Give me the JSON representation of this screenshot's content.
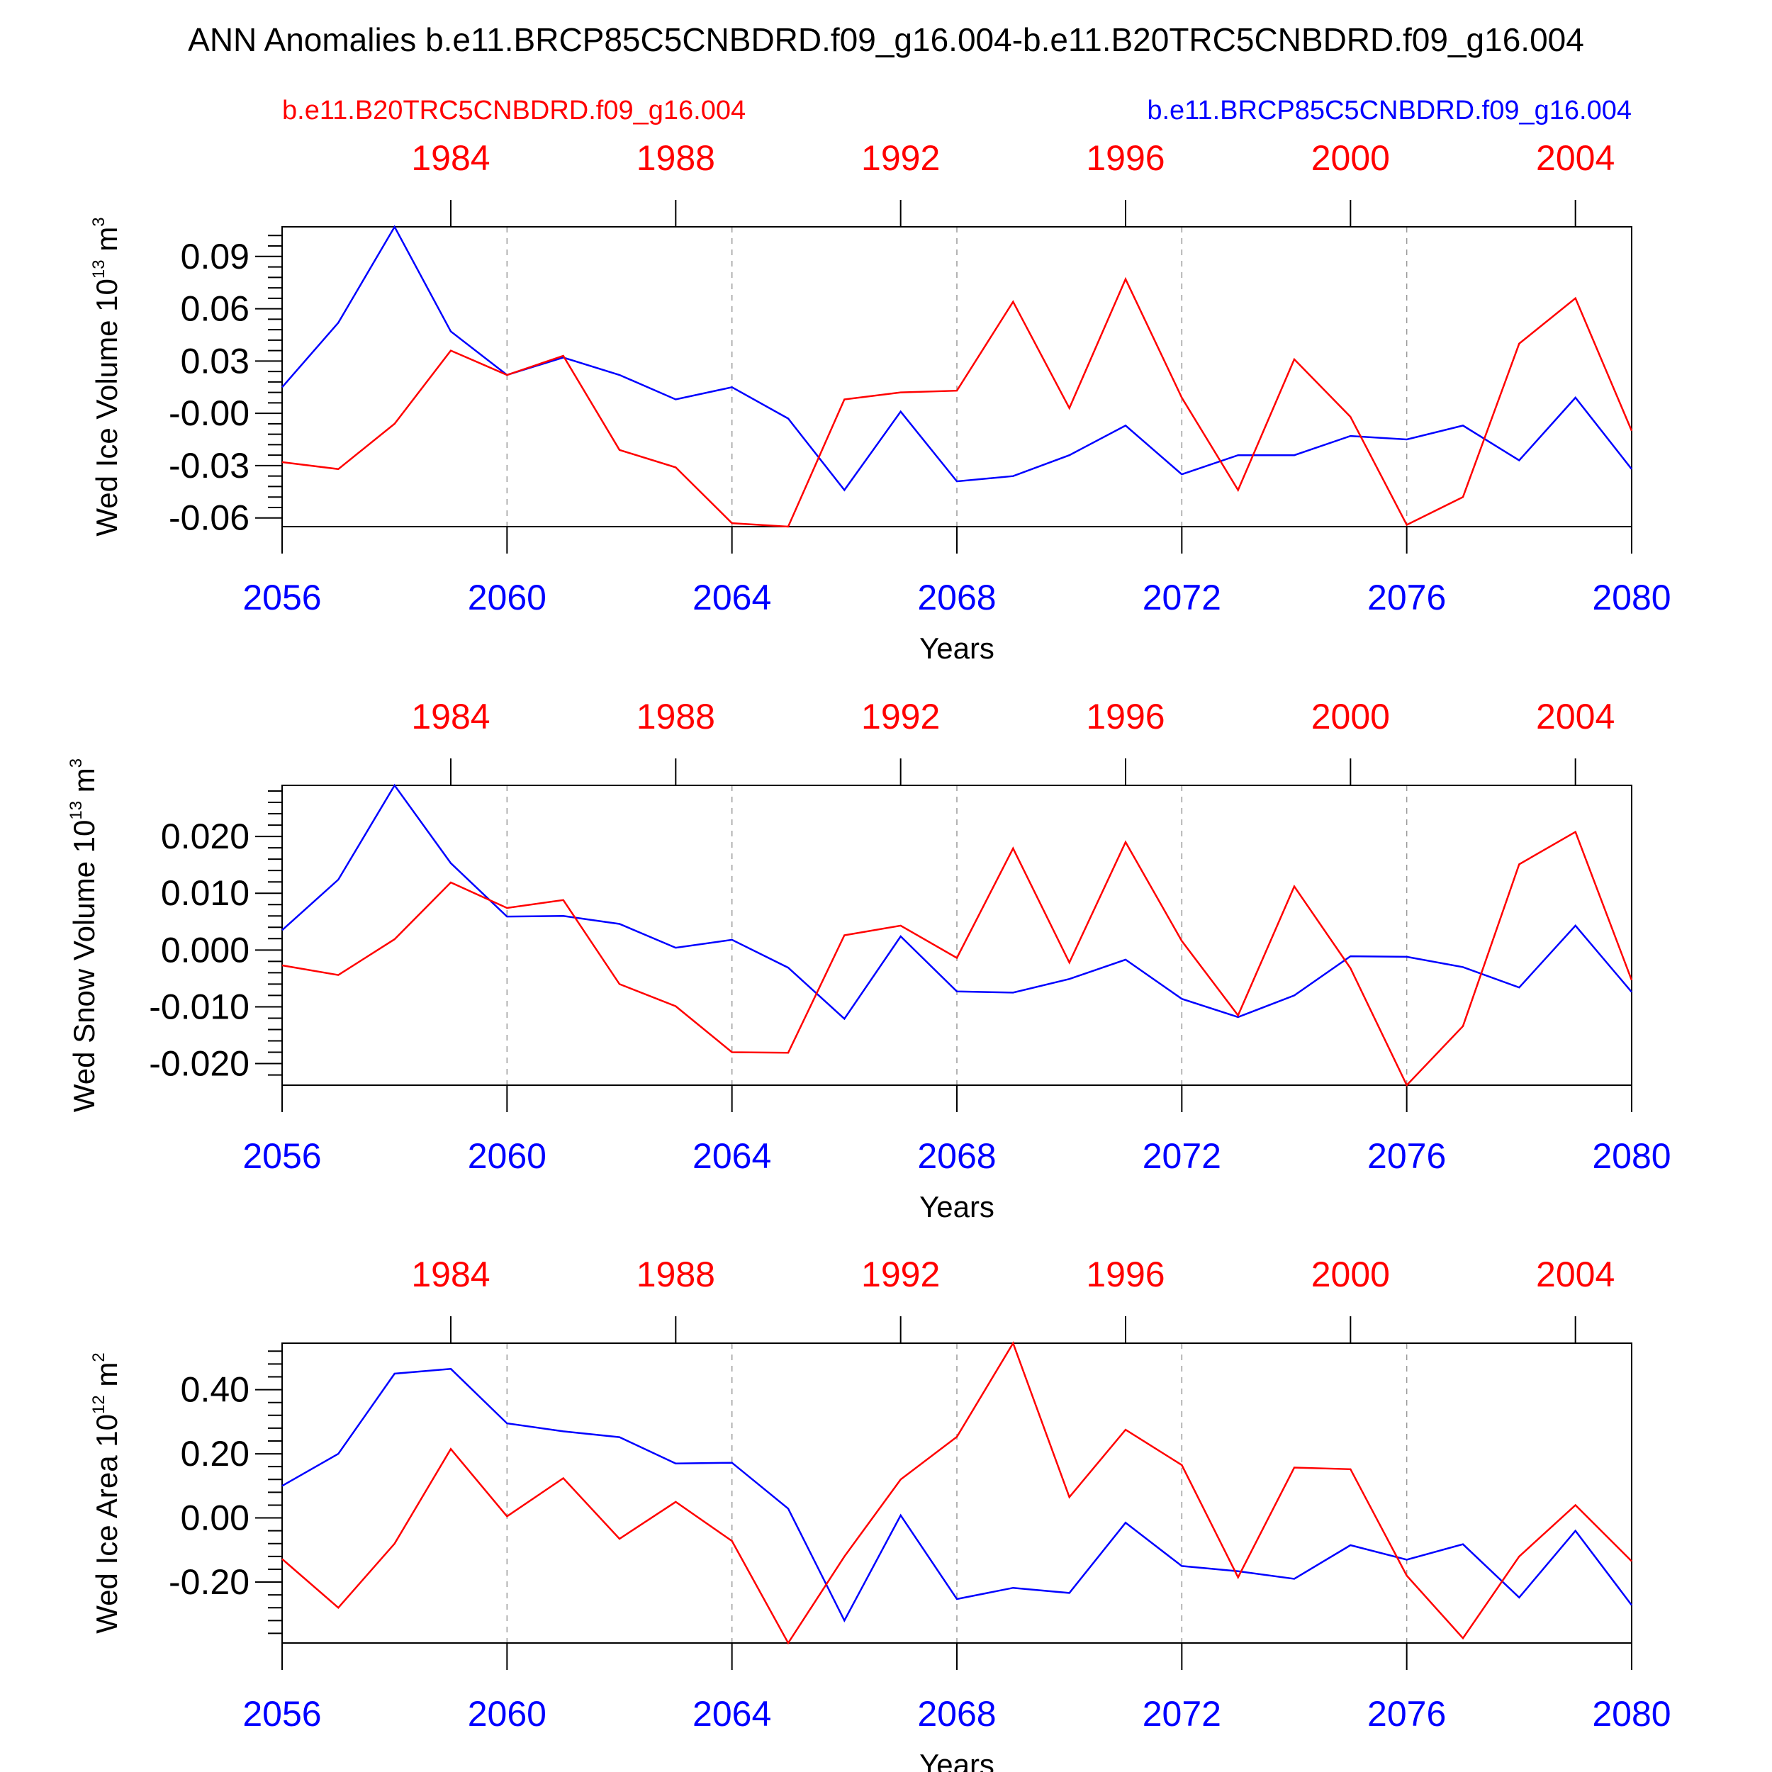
{
  "figure": {
    "title": "ANN Anomalies b.e11.BRCP85C5CNBDRD.f09_g16.004-b.e11.B20TRC5CNBDRD.f09_g16.004",
    "left_run": "b.e11.B20TRC5CNBDRD.f09_g16.004",
    "right_run": "b.e11.BRCP85C5CNBDRD.f09_g16.004",
    "colors": {
      "historical": "#ff0000",
      "future": "#0000ff"
    }
  },
  "chart_data": [
    {
      "type": "line",
      "ylabel_main": "Wed Ice Volume 10",
      "ylabel_exp": "13",
      "ylabel_unit": " m",
      "ylabel_unit_exp": "3",
      "xlabel": "Years",
      "x": [
        2056,
        2057,
        2058,
        2059,
        2060,
        2061,
        2062,
        2063,
        2064,
        2065,
        2066,
        2067,
        2068,
        2069,
        2070,
        2071,
        2072,
        2073,
        2074,
        2075,
        2076,
        2077,
        2078,
        2079,
        2080
      ],
      "xlim": [
        2056,
        2080
      ],
      "xticks": [
        2056,
        2060,
        2064,
        2068,
        2072,
        2076,
        2080
      ],
      "xtick_labels": [
        "2056",
        "2060",
        "2064",
        "2068",
        "2072",
        "2076",
        "2080"
      ],
      "top_ticks": [
        2059,
        2063,
        2067,
        2071,
        2075,
        2079
      ],
      "top_tick_labels": [
        "1984",
        "1988",
        "1992",
        "1996",
        "2000",
        "2004"
      ],
      "ylim": [
        -0.065,
        0.107
      ],
      "yticks": [
        0.09,
        0.06,
        0.03,
        0.0,
        -0.03,
        -0.06
      ],
      "ytick_labels": [
        "0.09",
        "0.06",
        "0.03",
        "-0.00",
        "-0.03",
        "-0.06"
      ],
      "yminor_step": 0.006,
      "series": [
        {
          "key": "future",
          "values": [
            0.015,
            0.052,
            0.107,
            0.047,
            0.022,
            0.032,
            0.022,
            0.008,
            0.015,
            -0.003,
            -0.044,
            0.001,
            -0.039,
            -0.036,
            -0.024,
            -0.007,
            -0.035,
            -0.024,
            -0.024,
            -0.013,
            -0.015,
            -0.007,
            -0.027,
            0.009,
            -0.032
          ]
        },
        {
          "key": "historical",
          "values": [
            -0.028,
            -0.032,
            -0.006,
            0.036,
            0.022,
            0.033,
            -0.021,
            -0.031,
            -0.063,
            -0.065,
            0.008,
            0.012,
            0.013,
            0.064,
            0.003,
            0.077,
            0.009,
            -0.044,
            0.031,
            -0.002,
            -0.064,
            -0.048,
            0.04,
            0.066,
            -0.01
          ]
        }
      ]
    },
    {
      "type": "line",
      "ylabel_main": "Wed Snow Volume 10",
      "ylabel_exp": "13",
      "ylabel_unit": " m",
      "ylabel_unit_exp": "3",
      "xlabel": "Years",
      "x": [
        2056,
        2057,
        2058,
        2059,
        2060,
        2061,
        2062,
        2063,
        2064,
        2065,
        2066,
        2067,
        2068,
        2069,
        2070,
        2071,
        2072,
        2073,
        2074,
        2075,
        2076,
        2077,
        2078,
        2079,
        2080
      ],
      "xlim": [
        2056,
        2080
      ],
      "xticks": [
        2056,
        2060,
        2064,
        2068,
        2072,
        2076,
        2080
      ],
      "xtick_labels": [
        "2056",
        "2060",
        "2064",
        "2068",
        "2072",
        "2076",
        "2080"
      ],
      "top_ticks": [
        2059,
        2063,
        2067,
        2071,
        2075,
        2079
      ],
      "top_tick_labels": [
        "1984",
        "1988",
        "1992",
        "1996",
        "2000",
        "2004"
      ],
      "ylim": [
        -0.0238,
        0.029
      ],
      "yticks": [
        0.02,
        0.01,
        0.0,
        -0.01,
        -0.02
      ],
      "ytick_labels": [
        "0.020",
        "0.010",
        "0.000",
        "-0.010",
        "-0.020"
      ],
      "yminor_step": 0.002,
      "series": [
        {
          "key": "future",
          "values": [
            0.0035,
            0.0124,
            0.029,
            0.0153,
            0.0059,
            0.006,
            0.0046,
            0.0004,
            0.0018,
            -0.0031,
            -0.0121,
            0.0024,
            -0.0073,
            -0.0075,
            -0.0051,
            -0.0017,
            -0.0086,
            -0.0118,
            -0.008,
            -0.0011,
            -0.0012,
            -0.003,
            -0.0066,
            0.0043,
            -0.0074
          ]
        },
        {
          "key": "historical",
          "values": [
            -0.0027,
            -0.0044,
            0.0019,
            0.0119,
            0.0074,
            0.0088,
            -0.006,
            -0.0099,
            -0.018,
            -0.0181,
            0.0026,
            0.0043,
            -0.0014,
            0.0179,
            -0.0022,
            0.019,
            0.0016,
            -0.0115,
            0.0112,
            -0.0032,
            -0.0238,
            -0.0134,
            0.0151,
            0.0208,
            -0.0053
          ]
        }
      ]
    },
    {
      "type": "line",
      "ylabel_main": "Wed Ice Area 10",
      "ylabel_exp": "12",
      "ylabel_unit": " m",
      "ylabel_unit_exp": "2",
      "xlabel": "Years",
      "x": [
        2056,
        2057,
        2058,
        2059,
        2060,
        2061,
        2062,
        2063,
        2064,
        2065,
        2066,
        2067,
        2068,
        2069,
        2070,
        2071,
        2072,
        2073,
        2074,
        2075,
        2076,
        2077,
        2078,
        2079,
        2080
      ],
      "xlim": [
        2056,
        2080
      ],
      "xticks": [
        2056,
        2060,
        2064,
        2068,
        2072,
        2076,
        2080
      ],
      "xtick_labels": [
        "2056",
        "2060",
        "2064",
        "2068",
        "2072",
        "2076",
        "2080"
      ],
      "top_ticks": [
        2059,
        2063,
        2067,
        2071,
        2075,
        2079
      ],
      "top_tick_labels": [
        "1984",
        "1988",
        "1992",
        "1996",
        "2000",
        "2004"
      ],
      "ylim": [
        -0.39,
        0.545
      ],
      "yticks": [
        0.4,
        0.2,
        0.0,
        -0.2
      ],
      "ytick_labels": [
        "0.40",
        "0.20",
        "0.00",
        "-0.20"
      ],
      "yminor_step": 0.04,
      "series": [
        {
          "key": "future",
          "values": [
            0.1,
            0.2,
            0.45,
            0.465,
            0.295,
            0.27,
            0.252,
            0.17,
            0.172,
            0.029,
            -0.32,
            0.008,
            -0.253,
            -0.218,
            -0.234,
            -0.015,
            -0.15,
            -0.166,
            -0.19,
            -0.085,
            -0.13,
            -0.082,
            -0.248,
            -0.04,
            -0.272
          ]
        },
        {
          "key": "historical",
          "values": [
            -0.128,
            -0.28,
            -0.08,
            0.215,
            0.005,
            0.124,
            -0.065,
            0.05,
            -0.072,
            -0.39,
            -0.12,
            0.12,
            0.253,
            0.545,
            0.065,
            0.275,
            0.165,
            -0.185,
            0.157,
            0.152,
            -0.18,
            -0.375,
            -0.12,
            0.04,
            -0.135
          ]
        }
      ]
    }
  ]
}
